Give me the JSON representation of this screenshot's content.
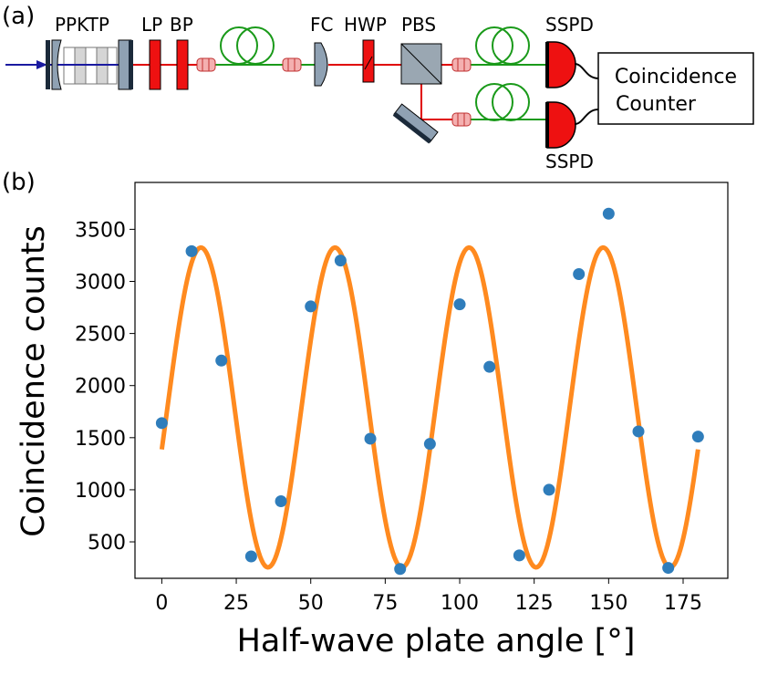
{
  "setup": {
    "panel_label": "(a)",
    "component_labels": {
      "ppktp": "PPKTP",
      "lp": "LP",
      "bp": "BP",
      "fc": "FC",
      "hwp": "HWP",
      "pbs": "PBS",
      "sspd_top": "SSPD",
      "sspd_bottom": "SSPD"
    },
    "counter_label_line1": "Coincidence",
    "counter_label_line2": "Counter",
    "colors": {
      "pump": "#1a1aa0",
      "laser_red": "#e00000",
      "fiber_green": "#1a9a1a",
      "optic_gray": "#8fa1b3",
      "filter_red": "#ee1111",
      "detector_red": "#ee1111"
    }
  },
  "chart_data": {
    "type": "scatter",
    "panel_label": "(b)",
    "title": "",
    "xlabel": "Half-wave plate angle [°]",
    "ylabel": "Coincidence counts",
    "xlim": [
      -9,
      190
    ],
    "ylim": [
      150,
      3950
    ],
    "xticks": [
      0,
      25,
      50,
      75,
      100,
      125,
      150,
      175
    ],
    "yticks": [
      500,
      1000,
      1500,
      2000,
      2500,
      3000,
      3500
    ],
    "series": [
      {
        "kind": "points",
        "color": "#2f7dbb",
        "x": [
          0,
          10,
          20,
          30,
          40,
          50,
          60,
          70,
          80,
          90,
          100,
          110,
          120,
          130,
          140,
          150,
          160,
          170,
          180
        ],
        "y": [
          1640,
          3290,
          2240,
          360,
          890,
          2760,
          3200,
          1490,
          240,
          1440,
          2780,
          2180,
          370,
          1000,
          3070,
          3650,
          1560,
          250,
          1510
        ]
      },
      {
        "kind": "fit",
        "color": "#ff8a1f",
        "offset": 1790,
        "amplitude": 1535,
        "period_deg": 45,
        "phase_deg": 1.9,
        "x_range": [
          0,
          180
        ]
      }
    ]
  }
}
